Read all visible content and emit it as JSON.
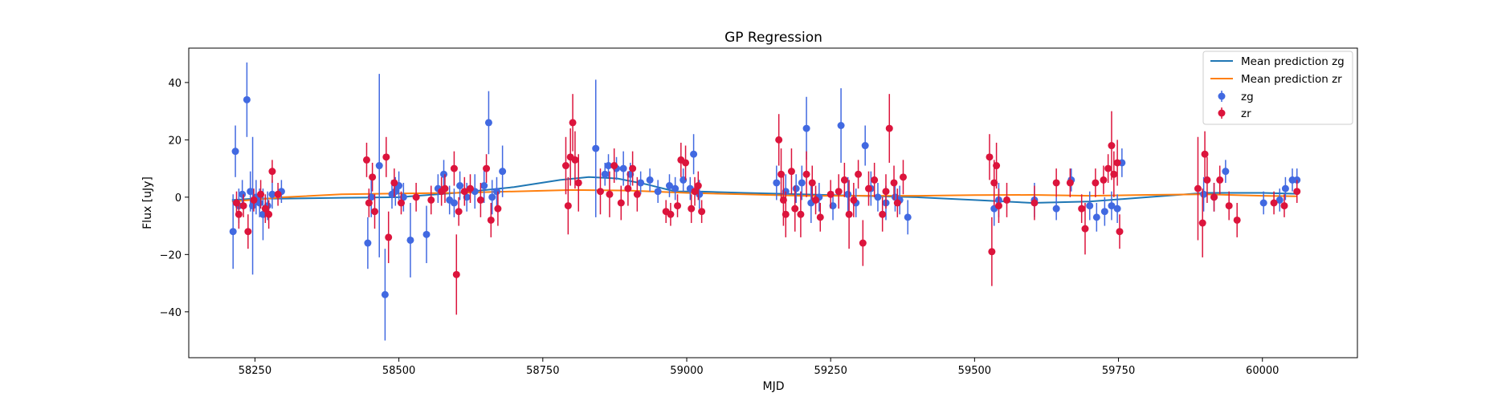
{
  "chart_data": {
    "type": "scatter",
    "title": "GP Regression",
    "xlabel": "MJD",
    "ylabel": "Flux [uJy]",
    "xlim": [
      58135,
      60165
    ],
    "ylim": [
      -56,
      52
    ],
    "xticks": [
      58250,
      58500,
      58750,
      59000,
      59250,
      59500,
      59750,
      60000
    ],
    "yticks": [
      -40,
      -20,
      0,
      20,
      40
    ],
    "grid": false,
    "legend_position": "top-right",
    "lines": [
      {
        "name": "Mean prediction zg",
        "color": "#1f77b4",
        "x": [
          58210,
          58250,
          58300,
          58400,
          58500,
          58600,
          58700,
          58780,
          58830,
          58880,
          58930,
          58980,
          59020,
          59100,
          59200,
          59300,
          59400,
          59500,
          59600,
          59700,
          59800,
          59900,
          60000,
          60060
        ],
        "y": [
          -1,
          -0.5,
          -0.5,
          -0.2,
          0,
          1.5,
          3.5,
          6,
          7,
          6.5,
          4.5,
          2,
          2,
          1.5,
          1,
          0.5,
          0,
          -1,
          -2,
          -1.5,
          0,
          1.5,
          1.5,
          1.2
        ]
      },
      {
        "name": "Mean prediction zr",
        "color": "#ff7f0e",
        "x": [
          58210,
          58300,
          58400,
          58500,
          58600,
          58700,
          58800,
          58900,
          59000,
          59100,
          59200,
          59300,
          59400,
          59500,
          59600,
          59700,
          59800,
          59900,
          60000,
          60060
        ],
        "y": [
          -1.5,
          0,
          1,
          1.3,
          1.5,
          2,
          2.5,
          2.3,
          1.5,
          1,
          0.5,
          0.5,
          0.5,
          0.7,
          0.8,
          0.5,
          0.8,
          1,
          0.5,
          0.3
        ]
      }
    ],
    "series": [
      {
        "name": "zg",
        "color": "#4169e1",
        "points": [
          [
            58212,
            -12,
            13
          ],
          [
            58216,
            16,
            9
          ],
          [
            58222,
            -3,
            6
          ],
          [
            58228,
            1,
            5
          ],
          [
            58236,
            34,
            13
          ],
          [
            58242,
            2,
            7
          ],
          [
            58246,
            -3,
            24
          ],
          [
            58252,
            0,
            6
          ],
          [
            58258,
            -2,
            5
          ],
          [
            58264,
            -6,
            9
          ],
          [
            58272,
            -3,
            5
          ],
          [
            58280,
            1,
            5
          ],
          [
            58296,
            2,
            4
          ],
          [
            58446,
            -16,
            9
          ],
          [
            58452,
            0,
            7
          ],
          [
            58466,
            11,
            32
          ],
          [
            58476,
            -34,
            16
          ],
          [
            58488,
            1,
            5
          ],
          [
            58494,
            2,
            5
          ],
          [
            58500,
            4,
            5
          ],
          [
            58508,
            0,
            5
          ],
          [
            58520,
            -15,
            13
          ],
          [
            58548,
            -13,
            10
          ],
          [
            58568,
            3,
            5
          ],
          [
            58578,
            8,
            5
          ],
          [
            58588,
            -1,
            5
          ],
          [
            58596,
            -2,
            5
          ],
          [
            58606,
            4,
            5
          ],
          [
            58618,
            0,
            5
          ],
          [
            58632,
            2,
            6
          ],
          [
            58648,
            4,
            6
          ],
          [
            58656,
            26,
            11
          ],
          [
            58662,
            0,
            6
          ],
          [
            58670,
            2,
            5
          ],
          [
            58680,
            9,
            9
          ],
          [
            58842,
            17,
            24
          ],
          [
            58858,
            8,
            4
          ],
          [
            58864,
            11,
            4
          ],
          [
            58878,
            10,
            4
          ],
          [
            58890,
            10,
            6
          ],
          [
            58902,
            8,
            4
          ],
          [
            58920,
            5,
            4
          ],
          [
            58936,
            6,
            4
          ],
          [
            58950,
            2,
            4
          ],
          [
            58970,
            4,
            4
          ],
          [
            58980,
            3,
            4
          ],
          [
            58994,
            6,
            4
          ],
          [
            59006,
            3,
            4
          ],
          [
            59012,
            15,
            7
          ],
          [
            59022,
            1,
            5
          ],
          [
            59156,
            5,
            6
          ],
          [
            59172,
            2,
            6
          ],
          [
            59190,
            3,
            5
          ],
          [
            59200,
            5,
            6
          ],
          [
            59208,
            24,
            11
          ],
          [
            59216,
            -2,
            7
          ],
          [
            59230,
            0,
            5
          ],
          [
            59254,
            -3,
            5
          ],
          [
            59268,
            25,
            13
          ],
          [
            59280,
            1,
            6
          ],
          [
            59294,
            -2,
            5
          ],
          [
            59310,
            18,
            7
          ],
          [
            59320,
            3,
            6
          ],
          [
            59332,
            0,
            5
          ],
          [
            59346,
            -2,
            6
          ],
          [
            59362,
            0,
            5
          ],
          [
            59370,
            -1,
            5
          ],
          [
            59384,
            -7,
            6
          ],
          [
            59534,
            -4,
            6
          ],
          [
            59542,
            -1,
            6
          ],
          [
            59604,
            -1,
            6
          ],
          [
            59642,
            -4,
            4
          ],
          [
            59668,
            6,
            4
          ],
          [
            59700,
            -3,
            5
          ],
          [
            59712,
            -7,
            5
          ],
          [
            59726,
            -5,
            5
          ],
          [
            59738,
            -3,
            5
          ],
          [
            59748,
            -4,
            5
          ],
          [
            59756,
            12,
            5
          ],
          [
            59898,
            1,
            6
          ],
          [
            59916,
            0,
            5
          ],
          [
            59936,
            9,
            4
          ],
          [
            60002,
            -2,
            4
          ],
          [
            60030,
            -1,
            4
          ],
          [
            60040,
            3,
            4
          ],
          [
            60052,
            6,
            4
          ],
          [
            60060,
            6,
            4
          ]
        ]
      },
      {
        "name": "zr",
        "color": "#dc143c",
        "points": [
          [
            58218,
            -2,
            4
          ],
          [
            58222,
            -6,
            5
          ],
          [
            58230,
            -3,
            4
          ],
          [
            58238,
            -12,
            6
          ],
          [
            58248,
            -1,
            4
          ],
          [
            58260,
            1,
            5
          ],
          [
            58268,
            -4,
            5
          ],
          [
            58274,
            -6,
            5
          ],
          [
            58280,
            9,
            4
          ],
          [
            58290,
            1,
            4
          ],
          [
            58444,
            13,
            6
          ],
          [
            58448,
            -2,
            5
          ],
          [
            58454,
            7,
            5
          ],
          [
            58458,
            -5,
            6
          ],
          [
            58478,
            14,
            7
          ],
          [
            58482,
            -14,
            9
          ],
          [
            58492,
            5,
            5
          ],
          [
            58504,
            -2,
            4
          ],
          [
            58530,
            0,
            5
          ],
          [
            58556,
            -1,
            5
          ],
          [
            58574,
            2,
            5
          ],
          [
            58580,
            3,
            5
          ],
          [
            58596,
            10,
            6
          ],
          [
            58600,
            -27,
            14
          ],
          [
            58604,
            -5,
            5
          ],
          [
            58614,
            2,
            5
          ],
          [
            58624,
            3,
            5
          ],
          [
            58642,
            -1,
            6
          ],
          [
            58652,
            10,
            5
          ],
          [
            58660,
            -8,
            6
          ],
          [
            58672,
            -4,
            6
          ],
          [
            58790,
            11,
            10
          ],
          [
            58794,
            -3,
            10
          ],
          [
            58798,
            14,
            10
          ],
          [
            58802,
            26,
            10
          ],
          [
            58806,
            13,
            10
          ],
          [
            58812,
            5,
            10
          ],
          [
            58850,
            2,
            8
          ],
          [
            58866,
            1,
            8
          ],
          [
            58874,
            11,
            6
          ],
          [
            58886,
            -2,
            6
          ],
          [
            58898,
            3,
            6
          ],
          [
            58906,
            10,
            6
          ],
          [
            58914,
            1,
            6
          ],
          [
            58964,
            -5,
            4
          ],
          [
            58972,
            -6,
            4
          ],
          [
            58984,
            -3,
            4
          ],
          [
            58990,
            13,
            6
          ],
          [
            58998,
            12,
            6
          ],
          [
            59008,
            -4,
            5
          ],
          [
            59014,
            2,
            5
          ],
          [
            59020,
            4,
            5
          ],
          [
            59026,
            -5,
            4
          ],
          [
            59160,
            20,
            9
          ],
          [
            59164,
            8,
            9
          ],
          [
            59168,
            -1,
            9
          ],
          [
            59172,
            -6,
            8
          ],
          [
            59182,
            9,
            8
          ],
          [
            59188,
            -4,
            8
          ],
          [
            59198,
            -6,
            8
          ],
          [
            59208,
            8,
            8
          ],
          [
            59218,
            5,
            6
          ],
          [
            59224,
            -1,
            5
          ],
          [
            59232,
            -7,
            5
          ],
          [
            59250,
            1,
            5
          ],
          [
            59264,
            2,
            6
          ],
          [
            59274,
            6,
            6
          ],
          [
            59282,
            -6,
            12
          ],
          [
            59290,
            -1,
            6
          ],
          [
            59298,
            8,
            5
          ],
          [
            59306,
            -16,
            8
          ],
          [
            59316,
            3,
            6
          ],
          [
            59326,
            6,
            6
          ],
          [
            59340,
            -6,
            6
          ],
          [
            59346,
            2,
            6
          ],
          [
            59352,
            24,
            12
          ],
          [
            59360,
            5,
            6
          ],
          [
            59366,
            -2,
            5
          ],
          [
            59376,
            7,
            6
          ],
          [
            59526,
            14,
            8
          ],
          [
            59530,
            -19,
            12
          ],
          [
            59534,
            5,
            8
          ],
          [
            59538,
            11,
            8
          ],
          [
            59542,
            -3,
            6
          ],
          [
            59556,
            -1,
            6
          ],
          [
            59604,
            -2,
            6
          ],
          [
            59642,
            5,
            5
          ],
          [
            59666,
            5,
            5
          ],
          [
            59686,
            -4,
            5
          ],
          [
            59692,
            -11,
            9
          ],
          [
            59710,
            5,
            5
          ],
          [
            59724,
            6,
            5
          ],
          [
            59732,
            10,
            5
          ],
          [
            59738,
            18,
            12
          ],
          [
            59742,
            8,
            8
          ],
          [
            59748,
            12,
            8
          ],
          [
            59752,
            -12,
            6
          ],
          [
            59888,
            3,
            18
          ],
          [
            59896,
            -9,
            12
          ],
          [
            59900,
            15,
            8
          ],
          [
            59904,
            6,
            8
          ],
          [
            59916,
            0,
            5
          ],
          [
            59926,
            6,
            5
          ],
          [
            59942,
            -3,
            5
          ],
          [
            59956,
            -8,
            6
          ],
          [
            60020,
            -2,
            4
          ],
          [
            60038,
            -3,
            4
          ],
          [
            60060,
            2,
            4
          ]
        ]
      }
    ]
  }
}
